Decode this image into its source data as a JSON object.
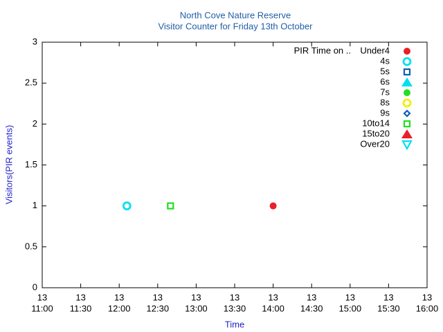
{
  "chart_data": {
    "type": "scatter",
    "title": "North Cove Nature Reserve",
    "subtitle": "Visitor Counter for Friday 13th October",
    "x_label": "Time",
    "y_label": "Visitors(PIR events)",
    "legend_title": "PIR Time on ..",
    "legend_position": "top-right",
    "xlim": [
      "11:00",
      "16:00"
    ],
    "xticks": [
      {
        "value": "11:00",
        "label": [
          "13",
          "11:00"
        ]
      },
      {
        "value": "11:30",
        "label": [
          "13",
          "11:30"
        ]
      },
      {
        "value": "12:00",
        "label": [
          "13",
          "12:00"
        ]
      },
      {
        "value": "12:30",
        "label": [
          "13",
          "12:30"
        ]
      },
      {
        "value": "13:00",
        "label": [
          "13",
          "13:00"
        ]
      },
      {
        "value": "13:30",
        "label": [
          "13",
          "13:30"
        ]
      },
      {
        "value": "14:00",
        "label": [
          "13",
          "14:00"
        ]
      },
      {
        "value": "14:30",
        "label": [
          "13",
          "14:30"
        ]
      },
      {
        "value": "15:00",
        "label": [
          "13",
          "15:00"
        ]
      },
      {
        "value": "15:30",
        "label": [
          "13",
          "15:30"
        ]
      },
      {
        "value": "16:00",
        "label": [
          "13",
          "16:00"
        ]
      }
    ],
    "ylim": [
      0,
      3
    ],
    "yticks": [
      0,
      0.5,
      1,
      1.5,
      2,
      2.5,
      3
    ],
    "series": [
      {
        "name": "Under4",
        "color": "#e8202a",
        "marker": "circle-filled",
        "x": [
          "14:00"
        ],
        "values": [
          1
        ]
      },
      {
        "name": "4s",
        "color": "#00e0f0",
        "marker": "circle-open",
        "x": [
          "12:06"
        ],
        "values": [
          1
        ]
      },
      {
        "name": "5s",
        "color": "#1060b0",
        "marker": "square-open",
        "x": [],
        "values": []
      },
      {
        "name": "6s",
        "color": "#00e0f0",
        "marker": "triangle-filled",
        "x": [],
        "values": []
      },
      {
        "name": "7s",
        "color": "#20e020",
        "marker": "circle-filled",
        "x": [],
        "values": []
      },
      {
        "name": "8s",
        "color": "#f0f000",
        "marker": "circle-open",
        "x": [],
        "values": []
      },
      {
        "name": "9s",
        "color": "#1060b0",
        "marker": "diamond-open",
        "x": [],
        "values": []
      },
      {
        "name": "10to14",
        "color": "#20e020",
        "marker": "square-open",
        "x": [
          "12:40"
        ],
        "values": [
          1
        ]
      },
      {
        "name": "15to20",
        "color": "#e8202a",
        "marker": "triangle-filled",
        "x": [],
        "values": []
      },
      {
        "name": "Over20",
        "color": "#00e0f0",
        "marker": "triangle-down-open",
        "x": [],
        "values": []
      }
    ]
  }
}
